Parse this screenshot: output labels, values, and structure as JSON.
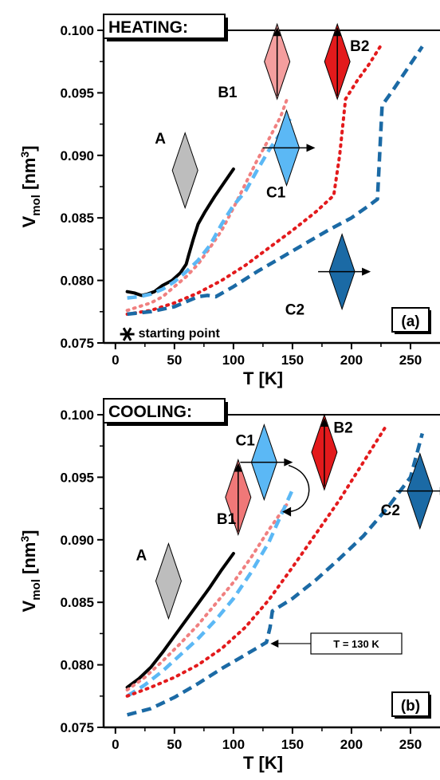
{
  "chart_data": [
    {
      "type": "line",
      "title": "HEATING:",
      "panel_label": "(a)",
      "xlabel": "T [K]",
      "ylabel_main": "V",
      "ylabel_sub": "mol",
      "ylabel_unit": "[nm",
      "ylabel_exp": "3",
      "ylabel_close": "]",
      "xlim": [
        -10,
        275
      ],
      "ylim": [
        0.075,
        0.1
      ],
      "xticks": [
        0,
        50,
        100,
        150,
        200,
        250
      ],
      "yticks": [
        0.075,
        0.08,
        0.085,
        0.09,
        0.095,
        0.1
      ],
      "ytick_labels": [
        "0.075",
        "0.080",
        "0.085",
        "0.090",
        "0.095",
        "0.100"
      ],
      "marker": {
        "label": "starting point",
        "x": 10,
        "y": 0.0757
      },
      "series": [
        {
          "name": "A",
          "color": "#000000",
          "dash": "solid",
          "x": [
            10,
            16,
            22,
            27,
            33,
            40,
            48,
            55,
            60,
            62,
            66,
            70,
            76,
            84,
            92,
            100
          ],
          "y": [
            0.0791,
            0.079,
            0.0788,
            0.0789,
            0.0791,
            0.0796,
            0.08,
            0.0806,
            0.0813,
            0.082,
            0.0833,
            0.0845,
            0.0855,
            0.0867,
            0.0878,
            0.0889
          ]
        },
        {
          "name": "B1",
          "color": "#f08080",
          "dash": "dot",
          "x": [
            10,
            20,
            30,
            40,
            50,
            60,
            70,
            80,
            90,
            100,
            110,
            120,
            130,
            140,
            145
          ],
          "y": [
            0.0776,
            0.0779,
            0.0782,
            0.0787,
            0.0795,
            0.0803,
            0.0813,
            0.0826,
            0.084,
            0.0858,
            0.0877,
            0.0896,
            0.0913,
            0.0931,
            0.0944
          ]
        },
        {
          "name": "C1",
          "color": "#5bb8f5",
          "dash": "dash",
          "x": [
            10,
            20,
            30,
            40,
            50,
            60,
            70,
            80,
            90,
            100,
            110,
            120,
            130,
            140,
            150
          ],
          "y": [
            0.0786,
            0.0787,
            0.0789,
            0.0793,
            0.0799,
            0.0807,
            0.0816,
            0.0828,
            0.0845,
            0.086,
            0.0871,
            0.0888,
            0.0904,
            0.0918,
            0.0932
          ]
        },
        {
          "name": "B2",
          "color": "#e31a1c",
          "dash": "dot",
          "x": [
            10,
            30,
            50,
            70,
            90,
            110,
            130,
            150,
            170,
            185,
            190,
            195,
            205,
            215,
            225
          ],
          "y": [
            0.0773,
            0.0776,
            0.0782,
            0.079,
            0.08,
            0.0812,
            0.0826,
            0.084,
            0.0855,
            0.0868,
            0.09,
            0.0945,
            0.096,
            0.0973,
            0.0988
          ]
        },
        {
          "name": "C2",
          "color": "#1b6aa5",
          "dash": "dash",
          "x": [
            10,
            30,
            50,
            70,
            78,
            85,
            100,
            120,
            140,
            160,
            180,
            200,
            215,
            222,
            226,
            235,
            250,
            260
          ],
          "y": [
            0.0773,
            0.0775,
            0.0779,
            0.0787,
            0.0788,
            0.0787,
            0.0795,
            0.0807,
            0.0818,
            0.0829,
            0.084,
            0.085,
            0.086,
            0.0865,
            0.094,
            0.0952,
            0.0973,
            0.0987
          ]
        }
      ],
      "labels": [
        {
          "text": "A",
          "x": 38,
          "y": 0.0914
        },
        {
          "text": "B1",
          "x": 95,
          "y": 0.0951
        },
        {
          "text": "C1",
          "x": 136,
          "y": 0.0871
        },
        {
          "text": "B2",
          "x": 207,
          "y": 0.0988
        },
        {
          "text": "C2",
          "x": 152,
          "y": 0.0777
        }
      ],
      "icons": [
        {
          "series": "A",
          "x": 59,
          "y": 0.0888,
          "color": "#bdbdbd",
          "arrow": "none"
        },
        {
          "series": "B1",
          "x": 137,
          "y": 0.0975,
          "color": "#f49e9e",
          "arrow": "up"
        },
        {
          "series": "C1",
          "x": 145,
          "y": 0.0906,
          "color": "#5bb8f5",
          "arrow": "right"
        },
        {
          "series": "B2",
          "x": 188,
          "y": 0.0975,
          "color": "#e31a1c",
          "arrow": "up"
        },
        {
          "series": "C2",
          "x": 192,
          "y": 0.0807,
          "color": "#1b6aa5",
          "arrow": "right"
        }
      ]
    },
    {
      "type": "line",
      "title": "COOLING:",
      "panel_label": "(b)",
      "xlabel": "T [K]",
      "ylabel_main": "V",
      "ylabel_sub": "mol",
      "ylabel_unit": "[nm",
      "ylabel_exp": "3",
      "ylabel_close": "]",
      "xlim": [
        -10,
        275
      ],
      "ylim": [
        0.075,
        0.1
      ],
      "xticks": [
        0,
        50,
        100,
        150,
        200,
        250
      ],
      "yticks": [
        0.075,
        0.08,
        0.085,
        0.09,
        0.095,
        0.1
      ],
      "ytick_labels": [
        "0.075",
        "0.080",
        "0.085",
        "0.090",
        "0.095",
        "0.100"
      ],
      "annotation": {
        "text": "T = 130 K",
        "x": 130,
        "y": 0.0817
      },
      "series": [
        {
          "name": "A",
          "color": "#000000",
          "dash": "solid",
          "x": [
            10,
            20,
            30,
            40,
            50,
            60,
            70,
            80,
            90,
            100
          ],
          "y": [
            0.0782,
            0.0789,
            0.0798,
            0.081,
            0.0823,
            0.0836,
            0.0849,
            0.0862,
            0.0876,
            0.0889
          ]
        },
        {
          "name": "B1",
          "color": "#f08080",
          "dash": "dot",
          "x": [
            10,
            25,
            40,
            55,
            70,
            85,
            100,
            115,
            130,
            145
          ],
          "y": [
            0.078,
            0.079,
            0.0803,
            0.0817,
            0.0832,
            0.0849,
            0.0866,
            0.0886,
            0.0908,
            0.0928
          ]
        },
        {
          "name": "C1",
          "color": "#5bb8f5",
          "dash": "dash",
          "x": [
            10,
            25,
            40,
            55,
            70,
            85,
            100,
            115,
            130,
            150
          ],
          "y": [
            0.0775,
            0.0784,
            0.0795,
            0.0808,
            0.0821,
            0.0836,
            0.0853,
            0.0874,
            0.0898,
            0.094
          ]
        },
        {
          "name": "B2",
          "color": "#e31a1c",
          "dash": "dot",
          "x": [
            10,
            30,
            50,
            70,
            90,
            110,
            130,
            150,
            170,
            190,
            210,
            230
          ],
          "y": [
            0.0775,
            0.0782,
            0.079,
            0.08,
            0.0813,
            0.083,
            0.0852,
            0.0878,
            0.0905,
            0.0932,
            0.0962,
            0.0992
          ]
        },
        {
          "name": "C2",
          "color": "#1b6aa5",
          "dash": "dash",
          "x": [
            10,
            30,
            50,
            70,
            90,
            110,
            128,
            131,
            133,
            150,
            170,
            190,
            210,
            230,
            250,
            260
          ],
          "y": [
            0.076,
            0.0765,
            0.0774,
            0.0785,
            0.0797,
            0.0808,
            0.0818,
            0.083,
            0.0843,
            0.0853,
            0.0868,
            0.0885,
            0.0903,
            0.0925,
            0.095,
            0.0985
          ]
        }
      ],
      "labels": [
        {
          "text": "A",
          "x": 22,
          "y": 0.0888
        },
        {
          "text": "B1",
          "x": 94,
          "y": 0.0917
        },
        {
          "text": "C1",
          "x": 110,
          "y": 0.098
        },
        {
          "text": "B2",
          "x": 193,
          "y": 0.099
        },
        {
          "text": "C2",
          "x": 233,
          "y": 0.0924
        }
      ],
      "icons": [
        {
          "series": "A",
          "x": 45,
          "y": 0.0867,
          "color": "#bdbdbd",
          "arrow": "none"
        },
        {
          "series": "B1",
          "x": 104,
          "y": 0.0934,
          "color": "#f07878",
          "arrow": "up"
        },
        {
          "series": "C1",
          "x": 126,
          "y": 0.0962,
          "color": "#5bb8f5",
          "arrow": "right"
        },
        {
          "series": "B2",
          "x": 177,
          "y": 0.097,
          "color": "#e31a1c",
          "arrow": "up"
        },
        {
          "series": "C2",
          "x": 258,
          "y": 0.0939,
          "color": "#1b6aa5",
          "arrow": "right"
        }
      ]
    }
  ]
}
